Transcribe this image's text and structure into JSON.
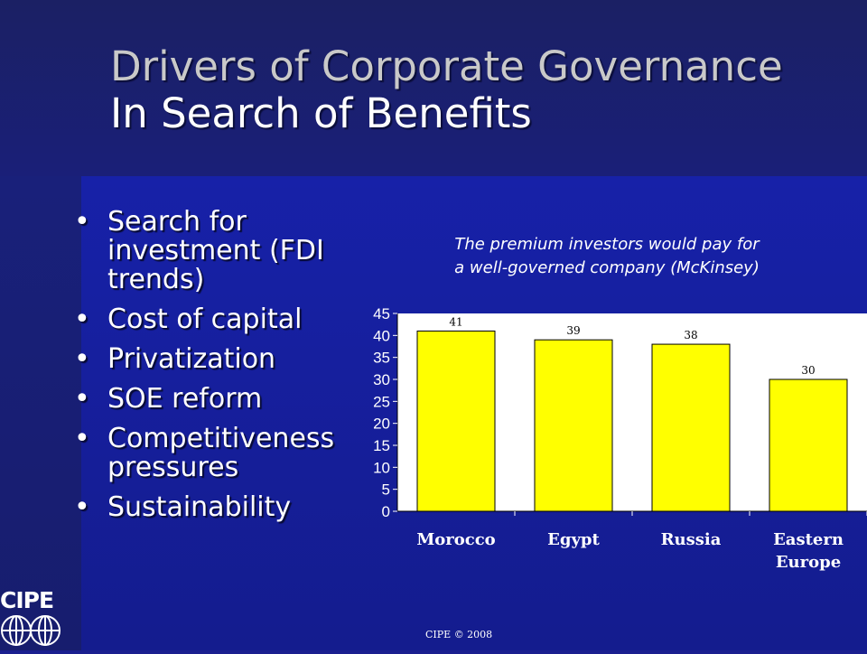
{
  "slide": {
    "title_line1": "Drivers of Corporate Governance",
    "title_line2": "In Search of Benefits",
    "bullets": [
      "Search for investment (FDI trends)",
      "Cost of capital",
      "Privatization",
      "SOE reform",
      "Competitiveness pressures",
      "Sustainability"
    ],
    "chart_note_line1": "The premium investors would pay for",
    "chart_note_line2": "a well-governed company (McKinsey)",
    "footer": "CIPE © 2008",
    "logo_text": "CIPE"
  },
  "colors": {
    "bar_fill": "#ffff00",
    "chart_bg": "#ffffff",
    "background": "#1a1f8f"
  },
  "chart_data": {
    "type": "bar",
    "categories": [
      "Morocco",
      "Egypt",
      "Russia",
      "Eastern Europe"
    ],
    "category_lines": [
      [
        "Morocco"
      ],
      [
        "Egypt"
      ],
      [
        "Russia"
      ],
      [
        "Eastern",
        "Europe"
      ]
    ],
    "values": [
      41,
      39,
      38,
      30
    ],
    "data_labels": [
      "41",
      "39",
      "38",
      "30"
    ],
    "ylim": [
      0,
      45
    ],
    "yticks": [
      0,
      5,
      10,
      15,
      20,
      25,
      30,
      35,
      40,
      45
    ],
    "grid": false,
    "title": "",
    "xlabel": "",
    "ylabel": ""
  }
}
